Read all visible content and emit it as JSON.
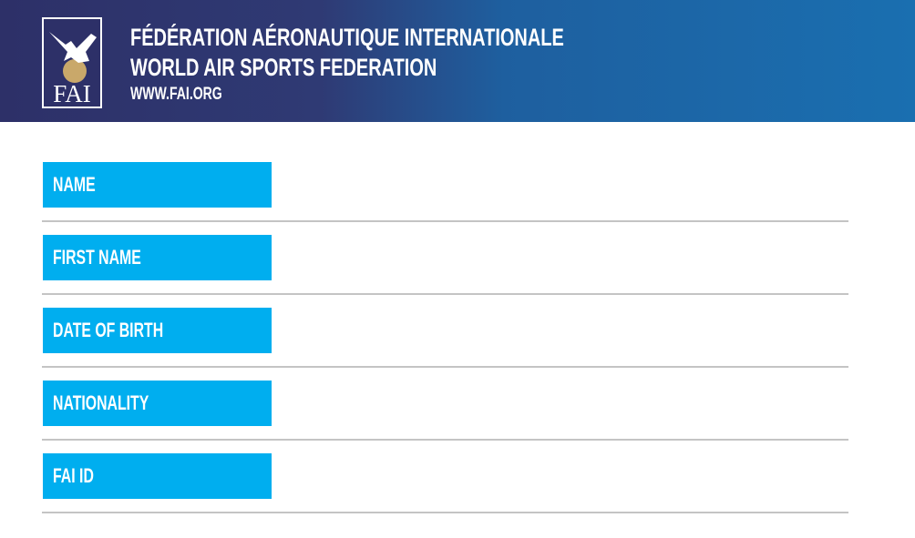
{
  "header": {
    "logo_text": "FAI",
    "title": "FÉDÉRATION AÉRONAUTIQUE INTERNATIONALE",
    "subtitle": "WORLD AIR SPORTS FEDERATION",
    "url": "WWW.FAI.ORG"
  },
  "fields": [
    "NAME",
    "FIRST NAME",
    "DATE OF BIRTH",
    "NATIONALITY",
    "FAI ID"
  ]
}
